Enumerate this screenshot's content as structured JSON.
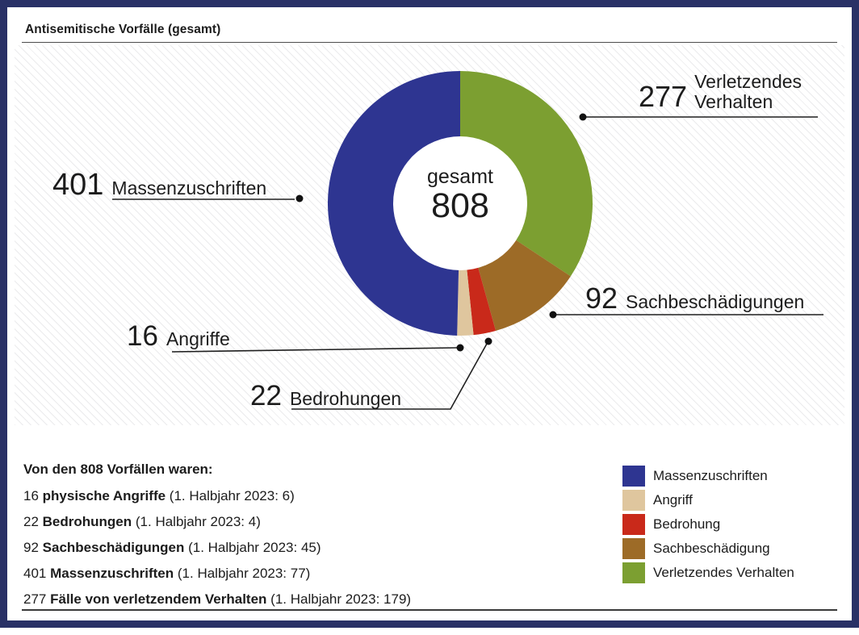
{
  "header": {
    "title": "Antisemitische Vorfälle (gesamt)"
  },
  "chart_data": {
    "type": "pie",
    "donut": true,
    "title": "Antisemitische Vorfälle (gesamt)",
    "total": 808,
    "center": {
      "label": "gesamt",
      "value": "808"
    },
    "start_angle_deg": 0,
    "direction": "clockwise",
    "segments": [
      {
        "label": "Verletzendes Verhalten",
        "value": 277,
        "color": "#7c9f31"
      },
      {
        "label": "Sachbeschädigung",
        "value": 92,
        "color": "#9d6b27"
      },
      {
        "label": "Bedrohung",
        "value": 22,
        "color": "#c9291a"
      },
      {
        "label": "Angriff",
        "value": 16,
        "color": "#dfc69e"
      },
      {
        "label": "Massenzuschriften",
        "value": 401,
        "color": "#2e3591"
      }
    ]
  },
  "callouts": {
    "massenzuschriften": {
      "value": "401",
      "label": "Massenzuschriften"
    },
    "verletzendes_verhalten": {
      "value": "277",
      "line1": "Verletzendes",
      "line2": "Verhalten"
    },
    "sachbeschaedigungen": {
      "value": "92",
      "label": "Sachbeschädigungen"
    },
    "angriffe": {
      "value": "16",
      "label": "Angriffe"
    },
    "bedrohungen": {
      "value": "22",
      "label": "Bedrohungen"
    }
  },
  "legend": {
    "items": [
      {
        "label": "Massenzuschriften",
        "color": "#2e3591"
      },
      {
        "label": "Angriff",
        "color": "#dfc69e"
      },
      {
        "label": "Bedrohung",
        "color": "#c9291a"
      },
      {
        "label": "Sachbeschädigung",
        "color": "#9d6b27"
      },
      {
        "label": "Verletzendes Verhalten",
        "color": "#7c9f31"
      }
    ]
  },
  "footer": {
    "heading": "Von den 808 Vorfällen waren:",
    "lines": [
      {
        "value": "16",
        "category": "physische Angriffe",
        "note": "(1. Halbjahr 2023: 6)"
      },
      {
        "value": "22",
        "category": "Bedrohungen",
        "note": "(1. Halbjahr 2023: 4)"
      },
      {
        "value": "92",
        "category": "Sachbeschädigungen",
        "note": "(1. Halbjahr 2023: 45)"
      },
      {
        "value": "401",
        "category": "Massenzuschriften",
        "note": "(1. Halbjahr 2023: 77)"
      },
      {
        "value": "277",
        "category": "Fälle von verletzendem Verhalten",
        "note": "(1. Halbjahr 2023: 179)"
      }
    ]
  },
  "colors": {
    "frame_border": "#293166",
    "text": "#1c1c1c",
    "callout_line": "#1f1f1f"
  }
}
